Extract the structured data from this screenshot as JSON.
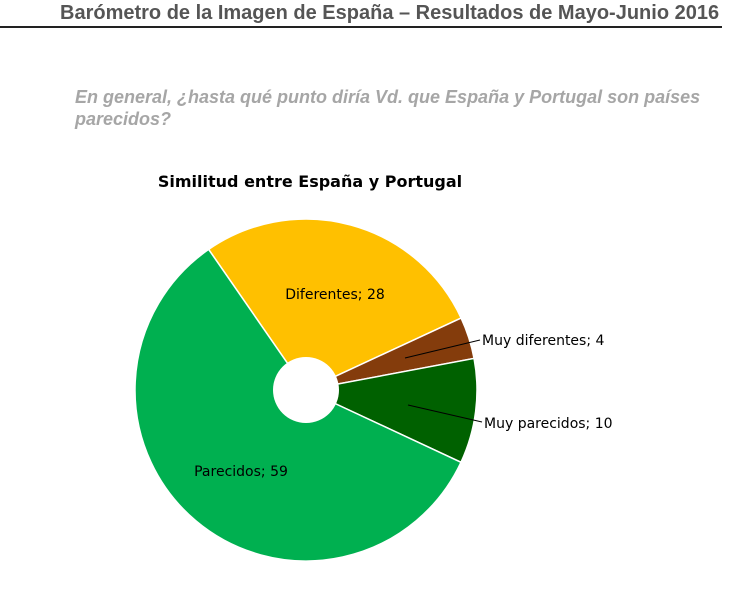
{
  "header": {
    "title": "Barómetro de la Imagen de España – Resultados de Mayo-Junio 2016"
  },
  "question": "En general, ¿hasta qué punto diría Vd. que España y Portugal son países parecidos?",
  "chart_data": {
    "type": "pie",
    "donut": true,
    "title": "Similitud entre España y Portugal",
    "categories": [
      "Diferentes",
      "Muy diferentes",
      "Muy parecidos",
      "Parecidos"
    ],
    "values": [
      28,
      4,
      10,
      59
    ],
    "labels": [
      "Diferentes; 28",
      "Muy diferentes; 4",
      "Muy parecidos; 10",
      "Parecidos; 59"
    ],
    "colors": [
      "#FFC000",
      "#843C0C",
      "#006100",
      "#00B050"
    ]
  }
}
